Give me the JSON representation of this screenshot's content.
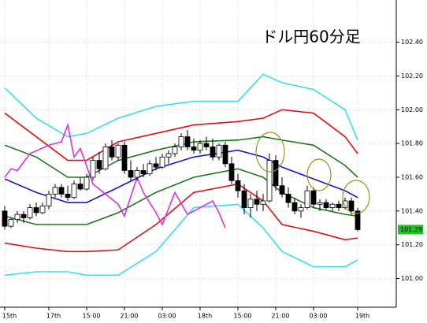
{
  "chart_data": {
    "type": "candlestick",
    "title": "ドル円60分足",
    "open": [
      101.4,
      101.31,
      101.35,
      101.38,
      101.36,
      101.42,
      101.39,
      101.43,
      101.5,
      101.54,
      101.5,
      101.48,
      101.56,
      101.53,
      101.6,
      101.7,
      101.65,
      101.78,
      101.72,
      101.79,
      101.64,
      101.6,
      101.64,
      101.62,
      101.68,
      101.66,
      101.72,
      101.74,
      101.78,
      101.84,
      101.78,
      101.76,
      101.8,
      101.78,
      101.72,
      101.79,
      101.68,
      101.58,
      101.52,
      101.42,
      101.47,
      101.44,
      101.46,
      101.7,
      101.55,
      101.5,
      101.45,
      101.4,
      101.42,
      101.52,
      101.44,
      101.45,
      101.42,
      101.44,
      101.42,
      101.46,
      101.4
    ],
    "high": [
      101.43,
      101.36,
      101.4,
      101.4,
      101.44,
      101.45,
      101.45,
      101.52,
      101.56,
      101.56,
      101.55,
      101.58,
      101.6,
      101.62,
      101.72,
      101.75,
      101.8,
      101.82,
      101.8,
      101.81,
      101.7,
      101.66,
      101.68,
      101.7,
      101.72,
      101.74,
      101.76,
      101.8,
      101.86,
      101.88,
      101.83,
      101.82,
      101.84,
      101.83,
      101.8,
      101.81,
      101.72,
      101.62,
      101.56,
      101.5,
      101.52,
      101.5,
      101.74,
      101.73,
      101.6,
      101.54,
      101.48,
      101.44,
      101.55,
      101.54,
      101.47,
      101.47,
      101.45,
      101.46,
      101.48,
      101.48,
      101.42
    ],
    "low": [
      101.29,
      101.3,
      101.33,
      101.33,
      101.35,
      101.37,
      101.38,
      101.41,
      101.48,
      101.48,
      101.46,
      101.47,
      101.52,
      101.52,
      101.58,
      101.62,
      101.64,
      101.7,
      101.7,
      101.62,
      101.58,
      101.58,
      101.6,
      101.61,
      101.64,
      101.65,
      101.68,
      101.72,
      101.76,
      101.76,
      101.74,
      101.74,
      101.76,
      101.7,
      101.7,
      101.66,
      101.56,
      101.48,
      101.38,
      101.36,
      101.4,
      101.4,
      101.45,
      101.52,
      101.48,
      101.42,
      101.38,
      101.36,
      101.41,
      101.42,
      101.4,
      101.41,
      101.4,
      101.4,
      101.41,
      101.38,
      101.28
    ],
    "close": [
      101.31,
      101.35,
      101.38,
      101.36,
      101.42,
      101.39,
      101.43,
      101.5,
      101.54,
      101.5,
      101.48,
      101.56,
      101.53,
      101.6,
      101.7,
      101.65,
      101.78,
      101.72,
      101.79,
      101.64,
      101.6,
      101.64,
      101.62,
      101.68,
      101.66,
      101.72,
      101.74,
      101.78,
      101.84,
      101.78,
      101.76,
      101.8,
      101.78,
      101.72,
      101.79,
      101.68,
      101.58,
      101.52,
      101.42,
      101.47,
      101.44,
      101.46,
      101.7,
      101.55,
      101.5,
      101.45,
      101.4,
      101.42,
      101.52,
      101.44,
      101.45,
      101.42,
      101.44,
      101.42,
      101.46,
      101.4,
      101.29
    ],
    "up_color": "#ffffff",
    "down_color": "#000000",
    "lines": [
      {
        "color": "#33e0f0",
        "x": [
          0,
          5,
          10,
          13,
          18,
          24,
          30,
          37,
          41,
          44,
          49,
          54,
          56
        ],
        "values": [
          102.13,
          101.95,
          101.84,
          101.86,
          101.95,
          102.02,
          102.05,
          102.05,
          102.21,
          102.16,
          102.12,
          102.0,
          101.82
        ]
      },
      {
        "color": "#e01010",
        "x": [
          0,
          5,
          10,
          13,
          18,
          24,
          30,
          37,
          41,
          44,
          49,
          54,
          56
        ],
        "values": [
          101.98,
          101.84,
          101.7,
          101.7,
          101.81,
          101.86,
          101.91,
          101.93,
          101.95,
          102.0,
          101.98,
          101.84,
          101.74
        ]
      },
      {
        "color": "#1a7a1a",
        "x": [
          0,
          5,
          10,
          13,
          18,
          24,
          30,
          37,
          41,
          44,
          49,
          54,
          56
        ],
        "values": [
          101.79,
          101.72,
          101.6,
          101.6,
          101.7,
          101.76,
          101.81,
          101.82,
          101.84,
          101.82,
          101.79,
          101.67,
          101.6
        ]
      },
      {
        "color": "#1818d0",
        "x": [
          0,
          5,
          10,
          13,
          18,
          24,
          30,
          37,
          41,
          44,
          49,
          54,
          56
        ],
        "values": [
          101.59,
          101.51,
          101.45,
          101.45,
          101.54,
          101.65,
          101.72,
          101.76,
          101.72,
          101.66,
          101.59,
          101.52,
          101.48
        ]
      },
      {
        "color": "#1a7a1a",
        "x": [
          0,
          5,
          10,
          13,
          18,
          24,
          30,
          37,
          41,
          44,
          49,
          54,
          56
        ],
        "values": [
          101.37,
          101.32,
          101.32,
          101.32,
          101.39,
          101.51,
          101.6,
          101.65,
          101.6,
          101.51,
          101.42,
          101.38,
          101.37
        ]
      },
      {
        "color": "#e01010",
        "x": [
          0,
          5,
          10,
          13,
          18,
          24,
          30,
          37,
          41,
          44,
          49,
          54,
          56
        ],
        "values": [
          101.21,
          101.18,
          101.16,
          101.16,
          101.17,
          101.32,
          101.51,
          101.56,
          101.46,
          101.32,
          101.28,
          101.23,
          101.24
        ]
      },
      {
        "color": "#33e0f0",
        "x": [
          0,
          5,
          10,
          13,
          18,
          24,
          30,
          37,
          41,
          44,
          49,
          54,
          56
        ],
        "values": [
          101.02,
          101.04,
          101.04,
          101.02,
          101.02,
          101.16,
          101.42,
          101.44,
          101.3,
          101.16,
          101.07,
          101.07,
          101.11
        ]
      },
      {
        "color": "#e030e0",
        "x": [
          0,
          1,
          2,
          4,
          7,
          9,
          10,
          11,
          12,
          14,
          18,
          19,
          21,
          22,
          24,
          25,
          27,
          29,
          31,
          33,
          34,
          35
        ],
        "values": [
          101.6,
          101.65,
          101.64,
          101.74,
          101.79,
          101.81,
          101.91,
          101.72,
          101.77,
          101.56,
          101.44,
          101.37,
          101.6,
          101.51,
          101.39,
          101.32,
          101.51,
          101.38,
          101.42,
          101.46,
          101.39,
          101.3
        ]
      }
    ],
    "current_price": {
      "value": 101.29,
      "label": "101.29"
    },
    "xlim": [
      -0.75,
      62
    ],
    "ylim": [
      100.83,
      102.65
    ],
    "xticks": [
      {
        "value": 0,
        "label": "15th"
      },
      {
        "value": 7,
        "label": "17th"
      },
      {
        "value": 13,
        "label": "15:00"
      },
      {
        "value": 19,
        "label": "21:00"
      },
      {
        "value": 25,
        "label": "03:00"
      },
      {
        "value": 31,
        "label": "18th"
      },
      {
        "value": 37,
        "label": "15:00"
      },
      {
        "value": 43,
        "label": "21:00"
      },
      {
        "value": 49,
        "label": "03:00"
      },
      {
        "value": 56,
        "label": "19th"
      }
    ],
    "yticks": [
      {
        "value": 101.0,
        "label": "101.00"
      },
      {
        "value": 101.2,
        "label": "101.20"
      },
      {
        "value": 101.4,
        "label": "101.40"
      },
      {
        "value": 101.6,
        "label": "101.60"
      },
      {
        "value": 101.8,
        "label": "101.80"
      },
      {
        "value": 102.0,
        "label": "102.00"
      },
      {
        "value": 102.2,
        "label": "102.20"
      },
      {
        "value": 102.4,
        "label": "102.40"
      }
    ],
    "grid": true
  }
}
